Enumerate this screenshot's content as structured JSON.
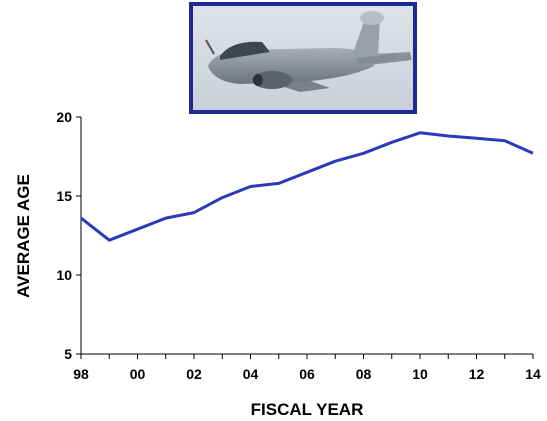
{
  "chart_data": {
    "type": "line",
    "title": "",
    "xlabel": "FISCAL YEAR",
    "ylabel": "AVERAGE AGE",
    "x": [
      98,
      99,
      0,
      1,
      2,
      3,
      4,
      5,
      6,
      7,
      8,
      9,
      10,
      11,
      12,
      13,
      14
    ],
    "x_tick_labels": [
      "98",
      "00",
      "02",
      "04",
      "06",
      "08",
      "10",
      "12",
      "14"
    ],
    "y_ticks": [
      5,
      10,
      15,
      20
    ],
    "ylim": [
      5,
      20
    ],
    "grid": false,
    "legend": "none",
    "series": [
      {
        "values": [
          13.6,
          12.2,
          12.9,
          13.6,
          13.95,
          14.9,
          15.6,
          15.8,
          16.5,
          17.2,
          17.7,
          18.4,
          19.0,
          18.8,
          18.65,
          18.5,
          17.7
        ],
        "color": "#2b3ab8"
      }
    ],
    "axis_color": "#000000"
  },
  "photo": {
    "subject": "aircraft-photo",
    "frame_color": "#1c2a93"
  }
}
